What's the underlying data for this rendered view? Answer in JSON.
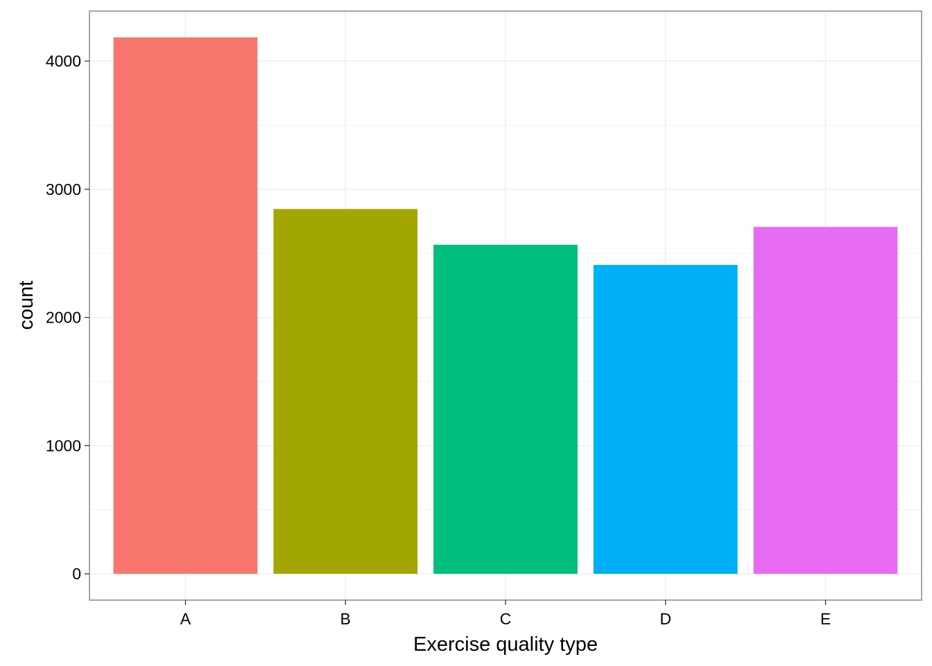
{
  "chart_data": {
    "type": "bar",
    "title": "",
    "xlabel": "Exercise quality type",
    "ylabel": "count",
    "categories": [
      "A",
      "B",
      "C",
      "D",
      "E"
    ],
    "values": [
      4185,
      2846,
      2567,
      2410,
      2706
    ],
    "colors": [
      "#F8766D",
      "#A3A500",
      "#00BF7D",
      "#00B0F6",
      "#E76BF3"
    ],
    "ylim": [
      -205,
      4390
    ],
    "yticks": [
      0,
      1000,
      2000,
      3000,
      4000
    ],
    "ytick_labels": [
      "0",
      "1000",
      "2000",
      "3000",
      "4000"
    ],
    "grid": true,
    "legend": "none",
    "theme": "bw"
  }
}
